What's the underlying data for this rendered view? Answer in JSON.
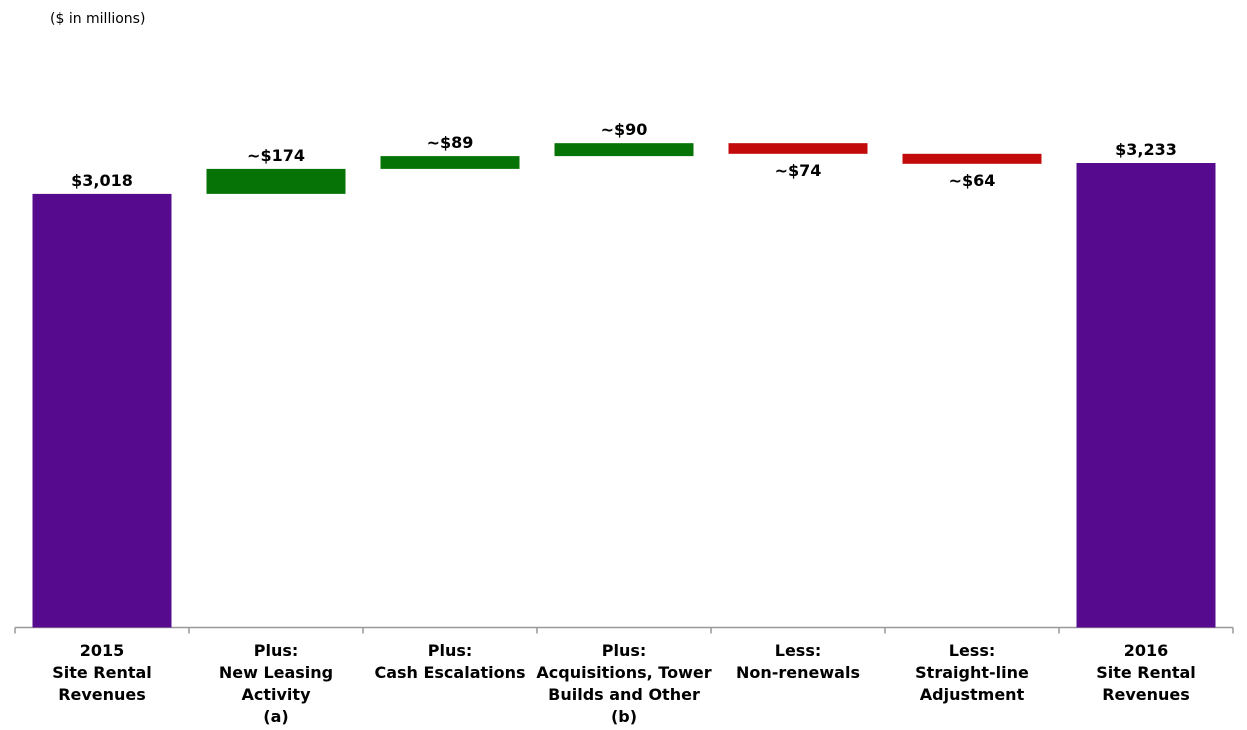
{
  "note": "($ in millions)",
  "chart_data": {
    "type": "bar",
    "subtype": "waterfall",
    "categories": [
      [
        "2015",
        "Site Rental",
        "Revenues"
      ],
      [
        "Plus:",
        "New Leasing",
        "Activity",
        "(a)"
      ],
      [
        "Plus:",
        "Cash Escalations"
      ],
      [
        "Plus:",
        "Acquisitions, Tower",
        "Builds and Other",
        "(b)"
      ],
      [
        "Less:",
        "Non-renewals"
      ],
      [
        "Less:",
        "Straight-line",
        "Adjustment"
      ],
      [
        "2016",
        "Site Rental",
        "Revenues"
      ]
    ],
    "values": [
      3018,
      174,
      89,
      90,
      -74,
      -64,
      3233
    ],
    "kinds": [
      "total",
      "increase",
      "increase",
      "increase",
      "decrease",
      "decrease",
      "total"
    ],
    "labels": [
      "$3,018",
      "~$174",
      "~$89",
      "~$90",
      "~$74",
      "~$64",
      "$3,233"
    ],
    "ylim": [
      0,
      3233
    ],
    "grid": false,
    "colors": {
      "total": "#560B8F",
      "increase": "#067306",
      "decrease": "#C20A0A",
      "axis": "#999999"
    }
  }
}
